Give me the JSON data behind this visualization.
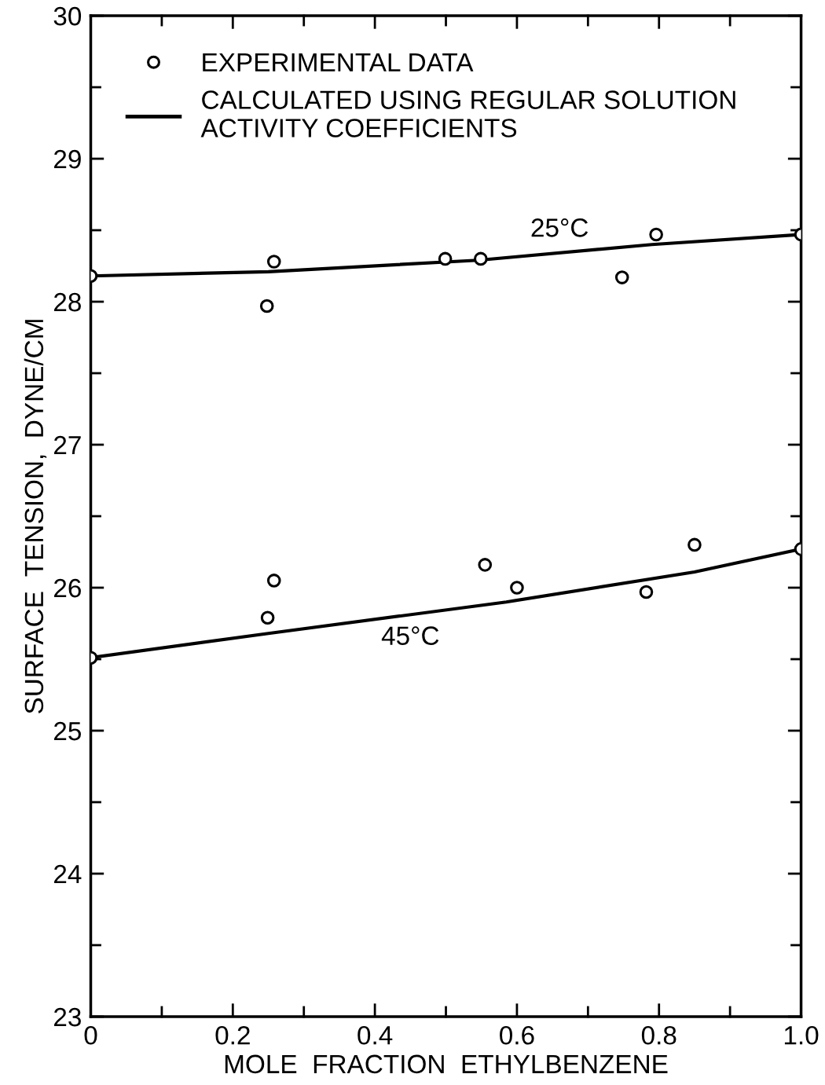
{
  "chart_data": {
    "type": "scatter",
    "xlabel": "MOLE  FRACTION  ETHYLBENZENE",
    "ylabel": "SURFACE  TENSION,  DYNE/CM",
    "xlim": [
      0,
      1.0
    ],
    "ylim": [
      23,
      30
    ],
    "xticks": [
      {
        "value": 0,
        "label": "0"
      },
      {
        "value": 0.1,
        "label": null
      },
      {
        "value": 0.2,
        "label": "0.2"
      },
      {
        "value": 0.3,
        "label": null
      },
      {
        "value": 0.4,
        "label": "0.4"
      },
      {
        "value": 0.5,
        "label": null
      },
      {
        "value": 0.6,
        "label": "0.6"
      },
      {
        "value": 0.7,
        "label": null
      },
      {
        "value": 0.8,
        "label": "0.8"
      },
      {
        "value": 0.9,
        "label": null
      },
      {
        "value": 1.0,
        "label": "1.0"
      }
    ],
    "yticks": [
      23,
      {
        "value": 23.5,
        "label": null
      },
      24,
      {
        "value": 24.5,
        "label": null
      },
      25,
      {
        "value": 25.5,
        "label": null
      },
      26,
      {
        "value": 26.5,
        "label": null
      },
      27,
      {
        "value": 27.5,
        "label": null
      },
      28,
      {
        "value": 28.5,
        "label": null
      },
      29,
      {
        "value": 29.5,
        "label": null
      },
      30
    ],
    "grid": false,
    "legend": "top left",
    "marker": "circle",
    "series": [
      {
        "name": "EXPERIMENTAL DATA",
        "color": "#000000",
        "x": [
          0,
          0.248,
          0.258,
          0.499,
          0.549,
          0.748,
          0.796,
          1.0
        ],
        "values": [
          28.18,
          27.97,
          28.28,
          28.3,
          28.3,
          28.17,
          28.47,
          28.47
        ]
      },
      {
        "color": "#000000",
        "x": [
          0,
          0.249,
          0.258,
          0.555,
          0.6,
          0.782,
          0.85,
          1.0
        ],
        "values": [
          25.51,
          25.79,
          26.05,
          26.16,
          26.0,
          25.97,
          26.3,
          26.27
        ]
      },
      {
        "name": "CALCULATED USING REGULAR SOLUTION\nACTIVITY COEFFICIENTS",
        "type": "line",
        "marker": "none",
        "line_style": "solid",
        "color": "#000000",
        "x": [
          0,
          0.25,
          0.545,
          0.79,
          1.0
        ],
        "values": [
          28.18,
          28.21,
          28.29,
          28.4,
          28.47
        ]
      },
      {
        "type": "line",
        "marker": "none",
        "line_style": "solid",
        "color": "#000000",
        "x": [
          0,
          0.25,
          0.585,
          0.85,
          1.0
        ],
        "values": [
          25.51,
          25.68,
          25.9,
          26.11,
          26.27
        ]
      }
    ],
    "annotations": [
      {
        "text": "25°C",
        "x": 0.66,
        "y": 28.34
      },
      {
        "text": "45°C",
        "x": 0.45,
        "y": 25.81
      }
    ]
  }
}
